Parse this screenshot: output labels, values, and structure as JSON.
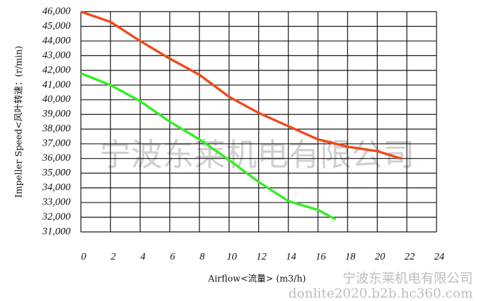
{
  "chart_data": {
    "type": "line",
    "x_label": "Airflow<流量> (m3/h)",
    "y_label": "Impeller Speed<风叶转速：(r/min)",
    "watermarks": [
      "宁波东莱机电有限公司",
      "宁波东莱机电有限公司",
      "donlite2020.b2b.hc360.com"
    ],
    "series": [
      {
        "color": "#f04a1a",
        "x": [
          0,
          2,
          4,
          6,
          8,
          10,
          12,
          14,
          16,
          18,
          20,
          21.6
        ],
        "values": [
          46000,
          45300,
          44000,
          42800,
          41700,
          40200,
          39100,
          38200,
          37300,
          36800,
          36500,
          36000
        ]
      },
      {
        "color": "#33ee22",
        "x": [
          0,
          2,
          4,
          6,
          8,
          10,
          12,
          14,
          16,
          17.2
        ],
        "values": [
          41800,
          41000,
          39900,
          38500,
          37300,
          35900,
          34400,
          33100,
          32500,
          31850
        ]
      }
    ],
    "xlim": [
      0,
      24
    ],
    "xticks": [
      0,
      2,
      4,
      6,
      8,
      10,
      12,
      14,
      16,
      18,
      20,
      22,
      24
    ],
    "ylim": [
      31000,
      46000
    ],
    "yticks": [
      {
        "value": 31000,
        "label": "31,000"
      },
      {
        "value": 32000,
        "label": "32,000"
      },
      {
        "value": 33000,
        "label": "33,000"
      },
      {
        "value": 34000,
        "label": "34,000"
      },
      {
        "value": 35000,
        "label": "35,000"
      },
      {
        "value": 36000,
        "label": "36,000"
      },
      {
        "value": 37000,
        "label": "37,000"
      },
      {
        "value": 38000,
        "label": "38,000"
      },
      {
        "value": 39000,
        "label": "39,000"
      },
      {
        "value": 40000,
        "label": "40,000"
      },
      {
        "value": 41000,
        "label": "41,000"
      },
      {
        "value": 42000,
        "label": "42,000"
      },
      {
        "value": 43000,
        "label": "43,000"
      },
      {
        "value": 44000,
        "label": "44,000"
      },
      {
        "value": 45000,
        "label": "45,000"
      },
      {
        "value": 46000,
        "label": "46,000"
      }
    ],
    "grid": true
  }
}
